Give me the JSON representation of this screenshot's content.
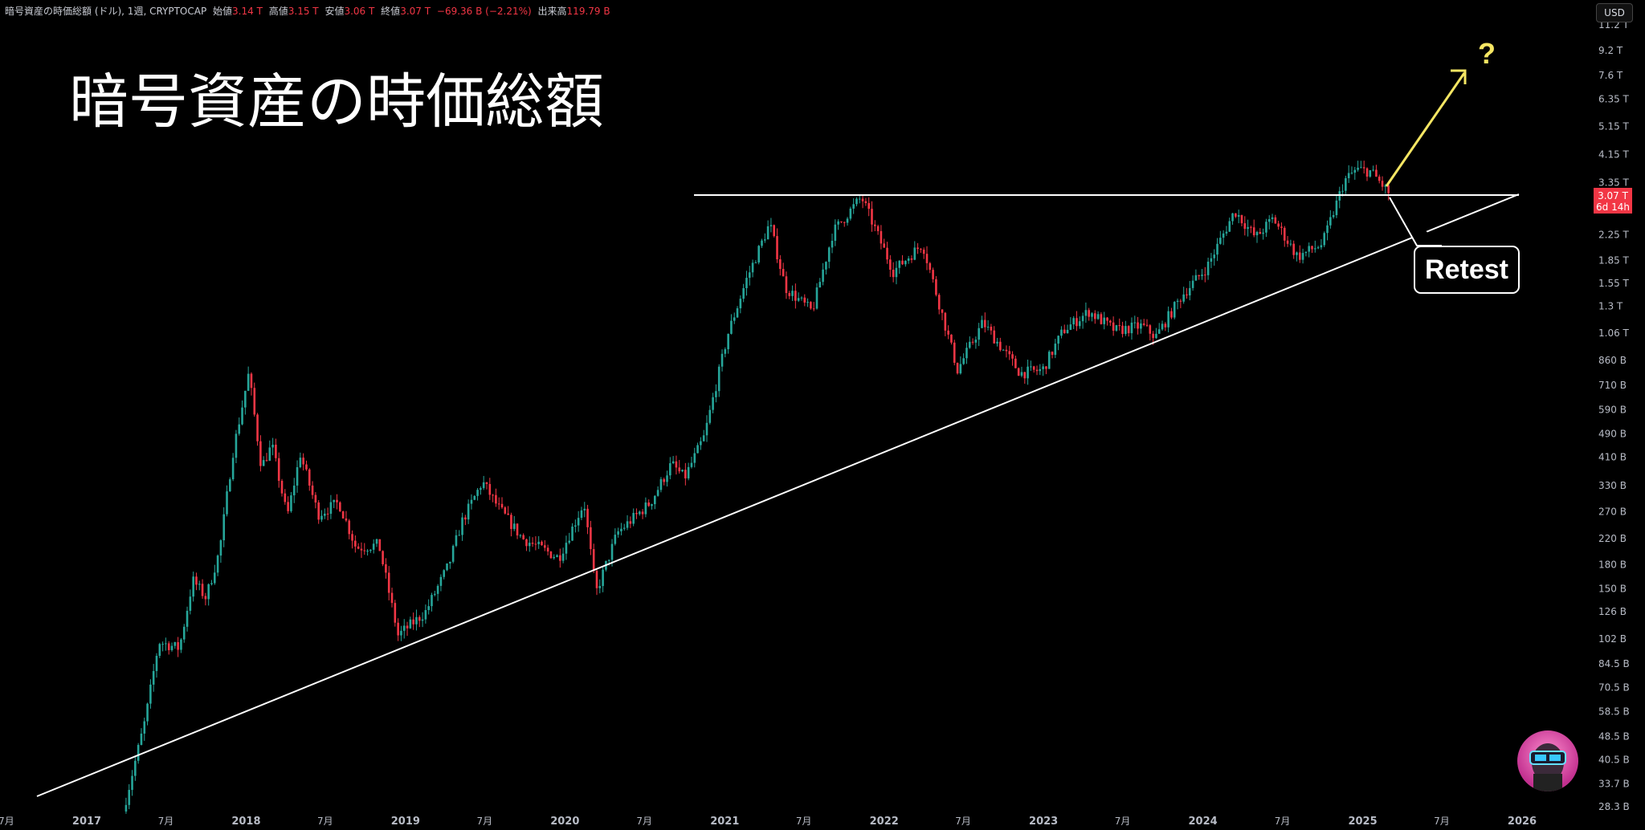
{
  "header": {
    "symbol": "暗号資産の時価総額 (ドル), 1週, CRYPTOCAP",
    "open_label": "始値",
    "open": "3.14 T",
    "high_label": "高値",
    "high": "3.15 T",
    "low_label": "安値",
    "low": "3.06 T",
    "close_label": "終値",
    "close": "3.07 T",
    "change": "−69.36 B (−2.21%)",
    "volume_label": "出来高",
    "volume": "119.79 B"
  },
  "currency_button": "USD",
  "colors": {
    "up": "#26a69a",
    "down": "#f23645",
    "arrow": "#f5e663",
    "line": "#ffffff"
  },
  "chart_data": {
    "type": "candlestick",
    "title": "暗号資産の時価総額",
    "y_scale": "log",
    "ylim": [
      "28.3B",
      "11.2T"
    ],
    "y_ticks": [
      "11.2 T",
      "9.2 T",
      "7.6 T",
      "6.35 T",
      "5.15 T",
      "4.15 T",
      "3.35 T",
      "2.25 T",
      "1.85 T",
      "1.55 T",
      "1.3 T",
      "1.06 T",
      "860 B",
      "710 B",
      "590 B",
      "490 B",
      "410 B",
      "330 B",
      "270 B",
      "220 B",
      "180 B",
      "150 B",
      "126 B",
      "102 B",
      "84.5 B",
      "70.5 B",
      "58.5 B",
      "48.5 B",
      "40.5 B",
      "33.7 B",
      "28.3 B"
    ],
    "y_tick_values_billion": [
      11200,
      9200,
      7600,
      6350,
      5150,
      4150,
      3350,
      2250,
      1850,
      1550,
      1300,
      1060,
      860,
      710,
      590,
      490,
      410,
      330,
      270,
      220,
      180,
      150,
      126,
      102,
      84.5,
      70.5,
      58.5,
      48.5,
      40.5,
      33.7,
      28.3
    ],
    "x_ticks": [
      "7月",
      "2017",
      "7月",
      "2018",
      "7月",
      "2019",
      "7月",
      "2020",
      "7月",
      "2021",
      "7月",
      "2022",
      "7月",
      "2023",
      "7月",
      "2024",
      "7月",
      "2025",
      "7月",
      "2026"
    ],
    "x_tick_dates": [
      "2016-07-01",
      "2017-01-01",
      "2017-07-01",
      "2018-01-01",
      "2018-07-01",
      "2019-01-01",
      "2019-07-01",
      "2020-01-01",
      "2020-07-01",
      "2021-01-01",
      "2021-07-01",
      "2022-01-01",
      "2022-07-01",
      "2023-01-01",
      "2023-07-01",
      "2024-01-01",
      "2024-07-01",
      "2025-01-01",
      "2025-07-01",
      "2026-01-01"
    ],
    "price_path_billion": [
      [
        "2017-04-01",
        30
      ],
      [
        "2017-05-15",
        55
      ],
      [
        "2017-06-15",
        100
      ],
      [
        "2017-08-01",
        95
      ],
      [
        "2017-09-01",
        160
      ],
      [
        "2017-10-01",
        140
      ],
      [
        "2017-11-01",
        200
      ],
      [
        "2017-12-01",
        420
      ],
      [
        "2018-01-07",
        780
      ],
      [
        "2018-02-05",
        380
      ],
      [
        "2018-03-01",
        450
      ],
      [
        "2018-04-05",
        260
      ],
      [
        "2018-05-05",
        420
      ],
      [
        "2018-06-15",
        265
      ],
      [
        "2018-08-01",
        290
      ],
      [
        "2018-09-10",
        205
      ],
      [
        "2018-11-01",
        210
      ],
      [
        "2018-12-15",
        105
      ],
      [
        "2019-02-15",
        125
      ],
      [
        "2019-04-10",
        180
      ],
      [
        "2019-05-10",
        250
      ],
      [
        "2019-06-26",
        340
      ],
      [
        "2019-08-01",
        280
      ],
      [
        "2019-09-26",
        220
      ],
      [
        "2019-12-18",
        190
      ],
      [
        "2020-02-14",
        290
      ],
      [
        "2020-03-12",
        145
      ],
      [
        "2020-04-30",
        230
      ],
      [
        "2020-07-15",
        290
      ],
      [
        "2020-09-01",
        390
      ],
      [
        "2020-10-01",
        350
      ],
      [
        "2020-11-15",
        480
      ],
      [
        "2021-01-08",
        1050
      ],
      [
        "2021-02-20",
        1600
      ],
      [
        "2021-04-14",
        2450
      ],
      [
        "2021-05-20",
        1500
      ],
      [
        "2021-07-20",
        1250
      ],
      [
        "2021-09-06",
        2300
      ],
      [
        "2021-11-10",
        3000
      ],
      [
        "2022-01-22",
        1700
      ],
      [
        "2022-03-30",
        2100
      ],
      [
        "2022-06-18",
        800
      ],
      [
        "2022-08-15",
        1150
      ],
      [
        "2022-11-09",
        780
      ],
      [
        "2022-12-30",
        800
      ],
      [
        "2023-02-15",
        1080
      ],
      [
        "2023-04-15",
        1250
      ],
      [
        "2023-06-15",
        1080
      ],
      [
        "2023-08-15",
        1120
      ],
      [
        "2023-09-15",
        1030
      ],
      [
        "2023-11-15",
        1420
      ],
      [
        "2024-01-10",
        1750
      ],
      [
        "2024-03-14",
        2700
      ],
      [
        "2024-05-01",
        2200
      ],
      [
        "2024-06-10",
        2550
      ],
      [
        "2024-08-05",
        1900
      ],
      [
        "2024-10-01",
        2100
      ],
      [
        "2024-11-20",
        3400
      ],
      [
        "2024-12-17",
        3700
      ],
      [
        "2025-01-20",
        3650
      ],
      [
        "2025-03-03",
        3080
      ]
    ],
    "annotations": {
      "horizontal_resistance_billion": 3200,
      "retest_label": "Retest",
      "arrow_label": "?"
    },
    "last_price_label": "3.07 T",
    "countdown_label": "6d 14h"
  }
}
